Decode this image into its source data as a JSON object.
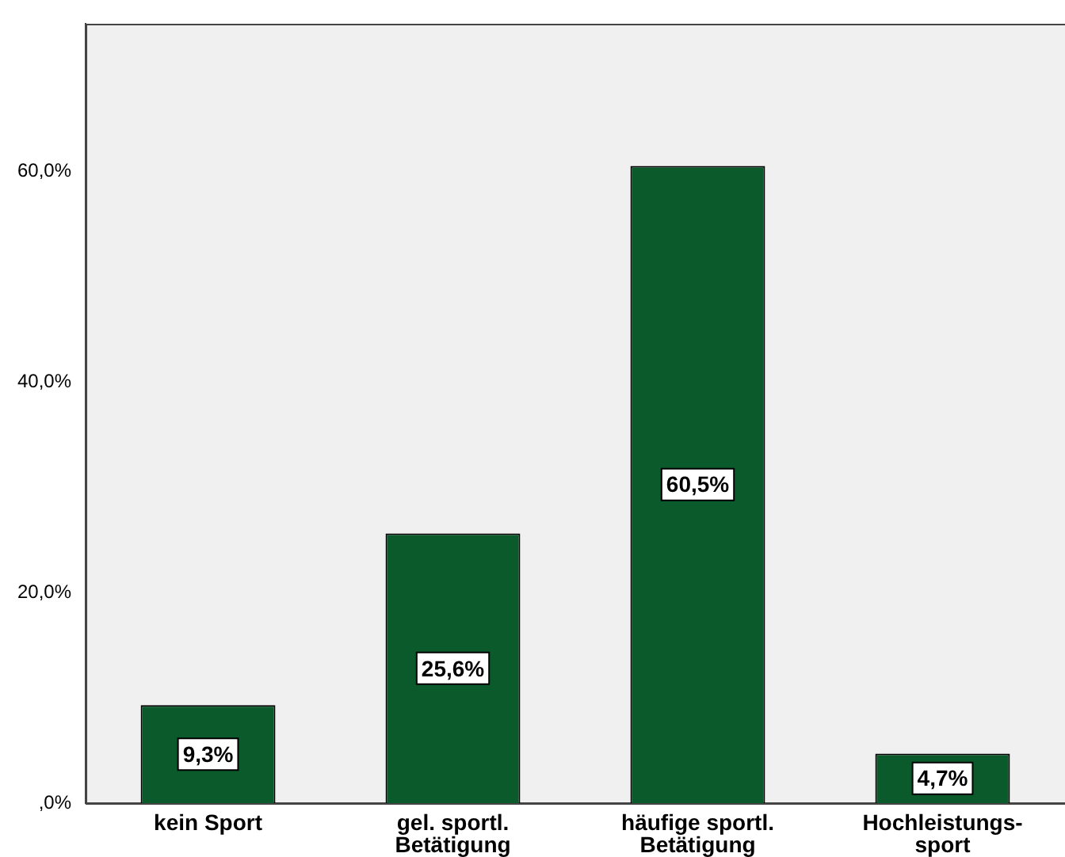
{
  "chart_data": {
    "type": "bar",
    "categories": [
      "kein Sport",
      "gel. sportl.\nBetätigung",
      "häufige sportl.\nBetätigung",
      "Hochleistungs-\nsport"
    ],
    "values": [
      9.3,
      25.6,
      60.5,
      4.7
    ],
    "value_labels": [
      "9,3%",
      "25,6%",
      "60,5%",
      "4,7%"
    ],
    "color": "#0b5a2c",
    "ylim": [
      0,
      74
    ],
    "yticks": [
      {
        "value": 0,
        "label": ",0%"
      },
      {
        "value": 20,
        "label": "20,0%"
      },
      {
        "value": 40,
        "label": "40,0%"
      },
      {
        "value": 60,
        "label": "60,0%"
      }
    ],
    "grid": false,
    "legend": false
  }
}
